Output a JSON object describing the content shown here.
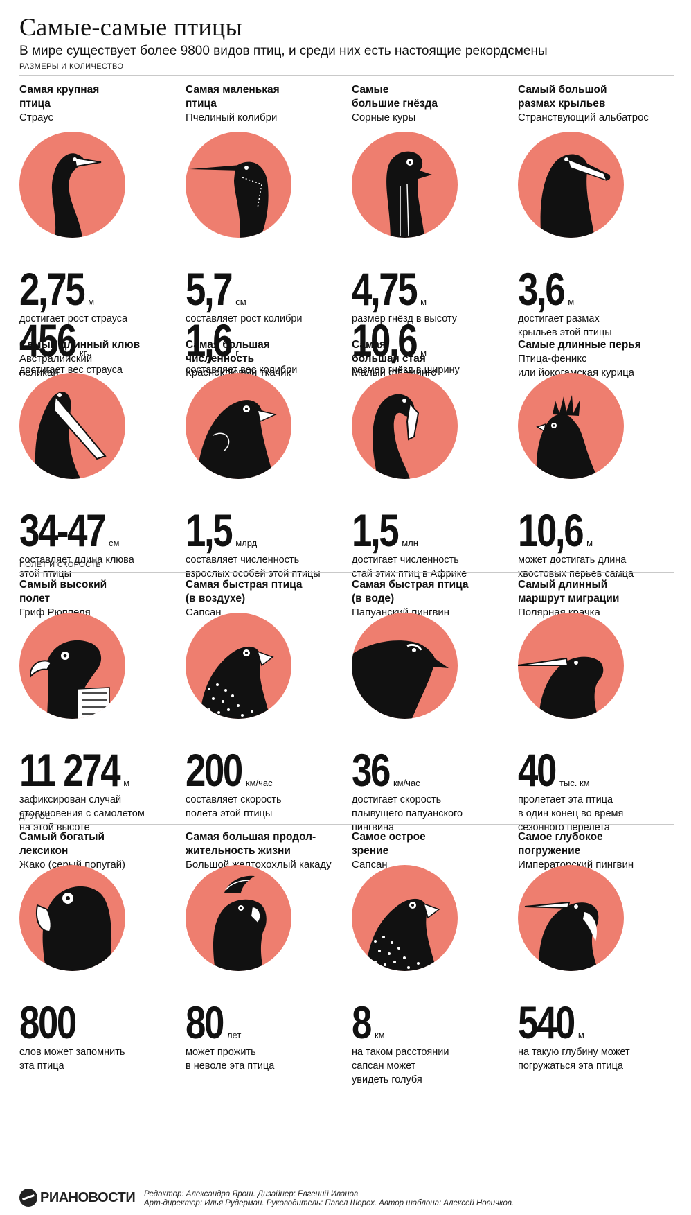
{
  "title": "Самые-самые птицы",
  "subtitle": "В мире существует более 9800 видов птиц, и среди них есть настоящие рекордсмены",
  "colors": {
    "circle": "#ee7e6f",
    "bird": "#111111",
    "text": "#111111",
    "rule": "#c9c9c9"
  },
  "sections": [
    {
      "label": "РАЗМЕРЫ И КОЛИЧЕСТВО",
      "cards": [
        {
          "title": "Самая крупная\nптица",
          "bird": "Страус",
          "icon": "ostrich-icon",
          "stats": [
            {
              "num": "2,75",
              "unit": "м",
              "desc": "достигает рост страуса"
            },
            {
              "num": "456",
              "unit": "кг",
              "desc": "достигает вес страуса"
            }
          ]
        },
        {
          "title": "Самая маленькая\nптица",
          "bird": "Пчелиный колибри",
          "icon": "hummingbird-icon",
          "stats": [
            {
              "num": "5,7",
              "unit": "см",
              "desc": "составляет рост колибри"
            },
            {
              "num": "1,6",
              "unit": "г",
              "desc": "составляет вес колибри"
            }
          ]
        },
        {
          "title": "Самые\nбольшие гнёзда",
          "bird": "Сорные куры",
          "icon": "megapode-icon",
          "stats": [
            {
              "num": "4,75",
              "unit": "м",
              "desc": "размер гнёзд в высоту"
            },
            {
              "num": "10,6",
              "unit": "м",
              "desc": "размер гнёзд в ширину"
            }
          ]
        },
        {
          "title": "Самый большой\nразмах крыльев",
          "bird": "Странствующий альбатрос",
          "icon": "albatross-icon",
          "stats": [
            {
              "num": "3,6",
              "unit": "м",
              "desc": "достигает размах\nкрыльев этой птицы"
            }
          ]
        }
      ]
    },
    {
      "label": "",
      "cards": [
        {
          "title": "Самый длинный клюв",
          "bird": "Австралийский\nпеликан",
          "icon": "pelican-icon",
          "stats": [
            {
              "num": "34-47",
              "unit": "см",
              "desc": "составляет длина клюва\nэтой птицы"
            }
          ]
        },
        {
          "title": "Самая большая\nчисленность",
          "bird": "Красноклювый ткачик",
          "icon": "weaver-icon",
          "stats": [
            {
              "num": "1,5",
              "unit": "млрд",
              "desc": "составляет численность\nвзрослых особей этой птицы"
            }
          ]
        },
        {
          "title": "Самая\nбольшая стая",
          "bird": "Малый фламинго",
          "icon": "flamingo-icon",
          "stats": [
            {
              "num": "1,5",
              "unit": "млн",
              "desc": "достигает численность\nстай этих птиц в Африке"
            }
          ]
        },
        {
          "title": "Самые длинные перья",
          "bird": "Птица-феникс\nили йокогамская курица",
          "icon": "rooster-icon",
          "stats": [
            {
              "num": "10,6",
              "unit": "м",
              "desc": "может достигать длина\nхвостовых перьев самца"
            }
          ]
        }
      ]
    },
    {
      "label": "ПОЛЕТ И СКОРОСТЬ",
      "cards": [
        {
          "title": "Самый высокий\nполет",
          "bird": "Гриф Рюппеля",
          "icon": "vulture-icon",
          "stats": [
            {
              "num": "11 274",
              "unit": "м",
              "desc": "зафиксирован случай\nстолкновения с самолетом\nна этой высоте"
            }
          ]
        },
        {
          "title": "Самая быстрая птица\n(в воздухе)",
          "bird": "Сапсан",
          "icon": "falcon-icon",
          "stats": [
            {
              "num": "200",
              "unit": "км/час",
              "desc": "составляет скорость\nполета этой птицы"
            }
          ]
        },
        {
          "title": "Самая быстрая птица\n(в воде)",
          "bird": "Папуанский пингвин",
          "icon": "gentoo-penguin-icon",
          "stats": [
            {
              "num": "36",
              "unit": "км/час",
              "desc": "достигает скорость\nплывущего папуанского\nпингвина"
            }
          ]
        },
        {
          "title": "Самый длинный\nмаршрут миграции",
          "bird": "Полярная крачка",
          "icon": "tern-icon",
          "stats": [
            {
              "num": "40",
              "unit": "тыс. км",
              "desc": "пролетает эта птица\nв один конец во время\nсезонного перелета"
            }
          ]
        }
      ]
    },
    {
      "label": "ДРУГОЕ",
      "cards": [
        {
          "title": "Самый богатый\nлексикон",
          "bird": "Жако (серый попугай)",
          "icon": "parrot-icon",
          "stats": [
            {
              "num": "800",
              "unit": "",
              "desc": "слов может запомнить\nэта птица"
            }
          ]
        },
        {
          "title": "Самая большая продол-\nжительность жизни",
          "bird": "Большой желтохохлый какаду",
          "icon": "cockatoo-icon",
          "stats": [
            {
              "num": "80",
              "unit": "лет",
              "desc": "может прожить\nв неволе эта птица"
            }
          ]
        },
        {
          "title": "Самое острое\nзрение",
          "bird": "Сапсан",
          "icon": "falcon-icon",
          "stats": [
            {
              "num": "8",
              "unit": "км",
              "desc": "на таком расстоянии\nсапсан может\nувидеть голубя"
            }
          ]
        },
        {
          "title": "Самое глубокое\nпогружение",
          "bird": "Императорский пингвин",
          "icon": "emperor-penguin-icon",
          "stats": [
            {
              "num": "540",
              "unit": "м",
              "desc": "на такую глубину может\nпогружаться эта птица"
            }
          ]
        }
      ]
    }
  ],
  "footer": {
    "logo": "РИАНОВОСТИ",
    "credits": "Редактор: Александра Ярош. Дизайнер: Евгений Иванов\nАрт-директор: Илья Рудерман. Руководитель: Павел Шорох. Автор шаблона: Алексей Новичков."
  }
}
